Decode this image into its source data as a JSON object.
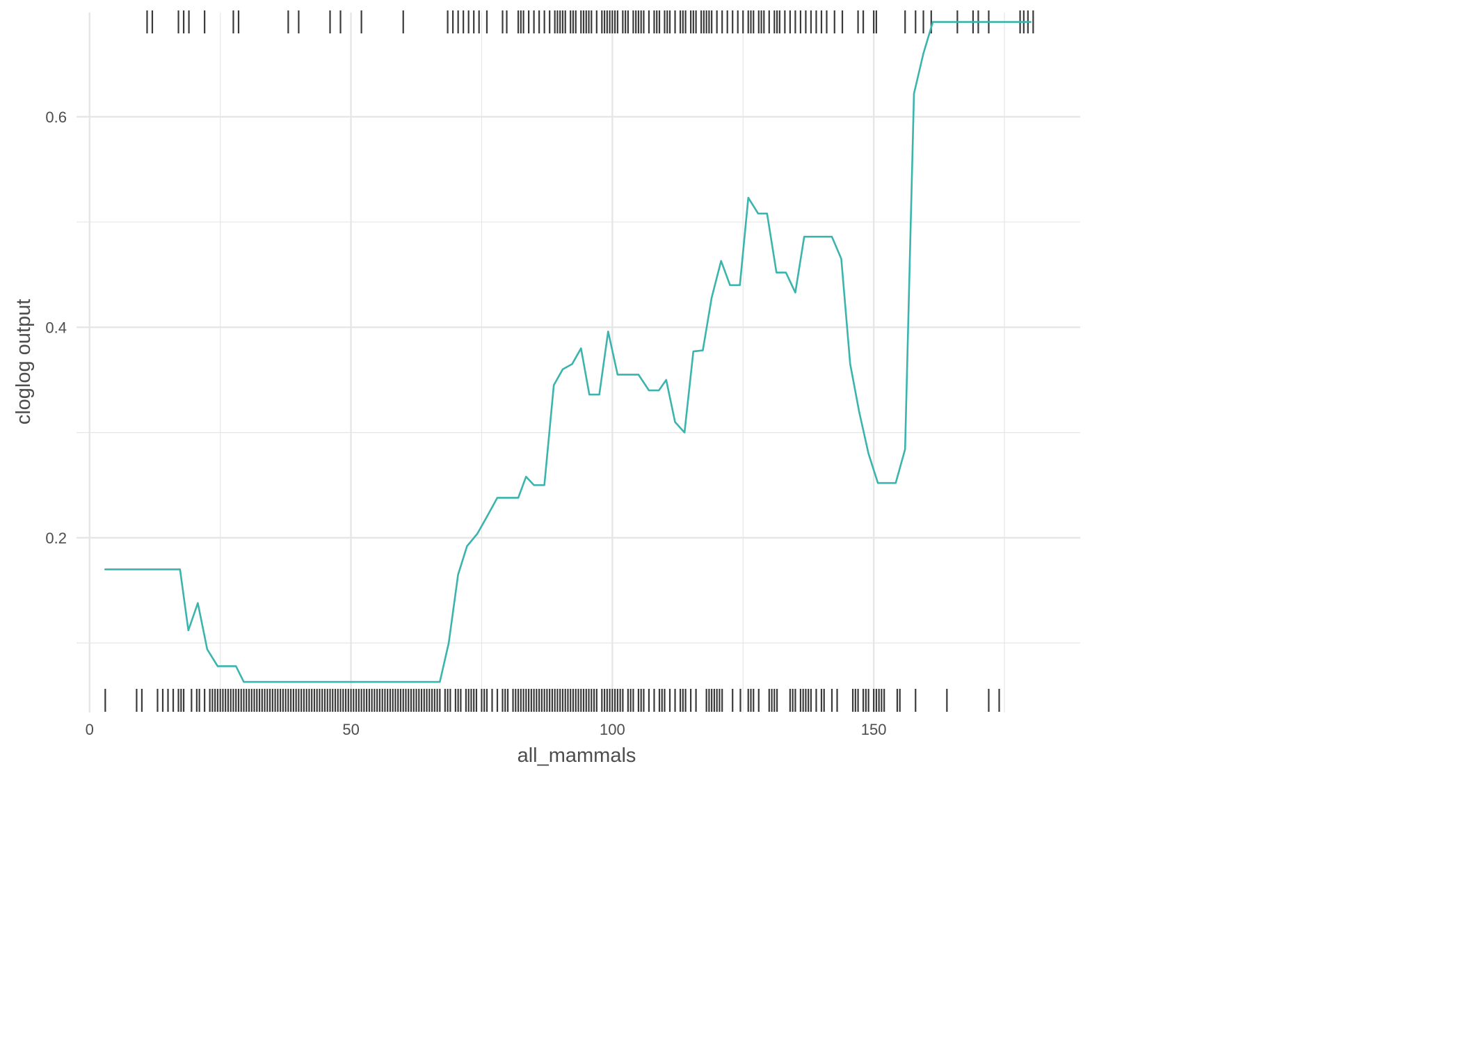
{
  "chart_data": {
    "type": "line",
    "title": "",
    "xlabel": "all_mammals",
    "ylabel": "cloglog output",
    "xlim": [
      -2.5,
      189.5
    ],
    "ylim": [
      0.034,
      0.699
    ],
    "x_ticks": [
      0,
      50,
      100,
      150
    ],
    "y_ticks": [
      0.2,
      0.4,
      0.6
    ],
    "x_tick_labels": [
      "0",
      "50",
      "100",
      "150"
    ],
    "y_tick_labels": [
      "0.2",
      "0.4",
      "0.6"
    ],
    "grid": true,
    "legend": "none",
    "line_color": "#3BB4AE",
    "rug_color": "#3A3A3A",
    "grid_color": "#E6E6E6",
    "series": [
      {
        "x": [
          3,
          17.3,
          18.9,
          20.7,
          22.5,
          24.5,
          28,
          29.5,
          67,
          68.7,
          70.5,
          72.2,
          74.2,
          76,
          78,
          82,
          83.5,
          85,
          87,
          88.8,
          90.5,
          92.3,
          94,
          95.6,
          97.5,
          99.2,
          101,
          105,
          107,
          108.9,
          110.3,
          112,
          113.8,
          115.5,
          117.3,
          119,
          120.8,
          122.5,
          124.4,
          126,
          127.9,
          129.6,
          131.4,
          133.2,
          135,
          136.7,
          138.5,
          142,
          143.8,
          145.5,
          147.2,
          149,
          150.8,
          154.2,
          156,
          157.7,
          159.5,
          161.3,
          180
        ],
        "y": [
          0.17,
          0.17,
          0.112,
          0.138,
          0.094,
          0.078,
          0.078,
          0.063,
          0.063,
          0.1,
          0.165,
          0.192,
          0.204,
          0.22,
          0.238,
          0.238,
          0.258,
          0.25,
          0.25,
          0.345,
          0.36,
          0.365,
          0.38,
          0.336,
          0.336,
          0.396,
          0.355,
          0.355,
          0.34,
          0.34,
          0.35,
          0.31,
          0.3,
          0.377,
          0.378,
          0.428,
          0.463,
          0.44,
          0.44,
          0.523,
          0.508,
          0.508,
          0.452,
          0.452,
          0.433,
          0.486,
          0.486,
          0.486,
          0.465,
          0.365,
          0.32,
          0.28,
          0.252,
          0.252,
          0.284,
          0.622,
          0.66,
          0.69,
          0.69
        ]
      }
    ],
    "rug_top": [
      11,
      12,
      17,
      18,
      19,
      22,
      27.5,
      28.5,
      38,
      40,
      46,
      48,
      52,
      60,
      68.5,
      69.5,
      70.5,
      71.5,
      72.5,
      73.5,
      74.5,
      76,
      79,
      79.8,
      82,
      82.5,
      83,
      84,
      85,
      86,
      87,
      88,
      89,
      89.5,
      90,
      90.5,
      91,
      92,
      92.5,
      93,
      94,
      94.5,
      95,
      95.5,
      96,
      97,
      98,
      98.5,
      99,
      99.5,
      100,
      100.5,
      101,
      102,
      102.5,
      103,
      104,
      104.5,
      105,
      105.5,
      106,
      107,
      108,
      108.5,
      109,
      110,
      110.5,
      111,
      112,
      113,
      113.5,
      114,
      115,
      115.5,
      116,
      117,
      117.5,
      118,
      118.5,
      119,
      120,
      121,
      122,
      123,
      124,
      125,
      126,
      126.5,
      127,
      128,
      128.5,
      129,
      130,
      131,
      131.5,
      132,
      133,
      134,
      135,
      136,
      137,
      138,
      139,
      140,
      141,
      142.5,
      144,
      147,
      148,
      150,
      150.5,
      156,
      158,
      159.5,
      161,
      166,
      169,
      170,
      172,
      178,
      178.7,
      179.5,
      180.5
    ],
    "rug_bottom": [
      3,
      9,
      10,
      13,
      14,
      15,
      16,
      17,
      17.5,
      18,
      19.5,
      20.5,
      21,
      22,
      23,
      23.5,
      24,
      24.5,
      25,
      25.5,
      26,
      26.5,
      27,
      27.5,
      28,
      28.5,
      29,
      29.5,
      30,
      30.5,
      31,
      31.5,
      32,
      32.5,
      33,
      33.5,
      34,
      34.5,
      35,
      35.5,
      36,
      36.5,
      37,
      37.5,
      38,
      38.5,
      39,
      39.5,
      40,
      40.5,
      41,
      41.5,
      42,
      42.5,
      43,
      43.5,
      44,
      44.5,
      45,
      45.5,
      46,
      46.5,
      47,
      47.5,
      48,
      48.5,
      49,
      49.5,
      50,
      50.5,
      51,
      51.5,
      52,
      52.5,
      53,
      53.5,
      54,
      54.5,
      55,
      55.5,
      56,
      56.5,
      57,
      57.5,
      58,
      58.5,
      59,
      59.5,
      60,
      60.5,
      61,
      61.5,
      62,
      62.5,
      63,
      63.5,
      64,
      64.5,
      65,
      65.5,
      66,
      66.5,
      67,
      68,
      68.5,
      69,
      70,
      70.5,
      71,
      72,
      72.5,
      73,
      73.5,
      74,
      75,
      75.5,
      76,
      77,
      78,
      79,
      79.5,
      80,
      81,
      81.5,
      82,
      82.5,
      83,
      83.5,
      84,
      84.5,
      85,
      85.5,
      86,
      86.5,
      87,
      87.5,
      88,
      88.5,
      89,
      89.5,
      90,
      90.5,
      91,
      91.5,
      92,
      92.5,
      93,
      93.5,
      94,
      94.5,
      95,
      95.5,
      96,
      96.5,
      97,
      98,
      98.5,
      99,
      99.5,
      100,
      100.5,
      101,
      101.5,
      102,
      103,
      103.5,
      104,
      105,
      105.5,
      106,
      107,
      108,
      109,
      109.5,
      110,
      111,
      112,
      113,
      113.5,
      114,
      115,
      116,
      118,
      118.5,
      119,
      119.5,
      120,
      120.5,
      121,
      123,
      124.5,
      126,
      126.5,
      127,
      128,
      130,
      130.5,
      131,
      131.5,
      134,
      134.5,
      135,
      136,
      136.5,
      137,
      137.5,
      138,
      139,
      140,
      140.5,
      142,
      143,
      146,
      146.5,
      147,
      148,
      148.5,
      149,
      150,
      150.5,
      151,
      151.5,
      152,
      154.5,
      155,
      158,
      164,
      172,
      174
    ]
  }
}
